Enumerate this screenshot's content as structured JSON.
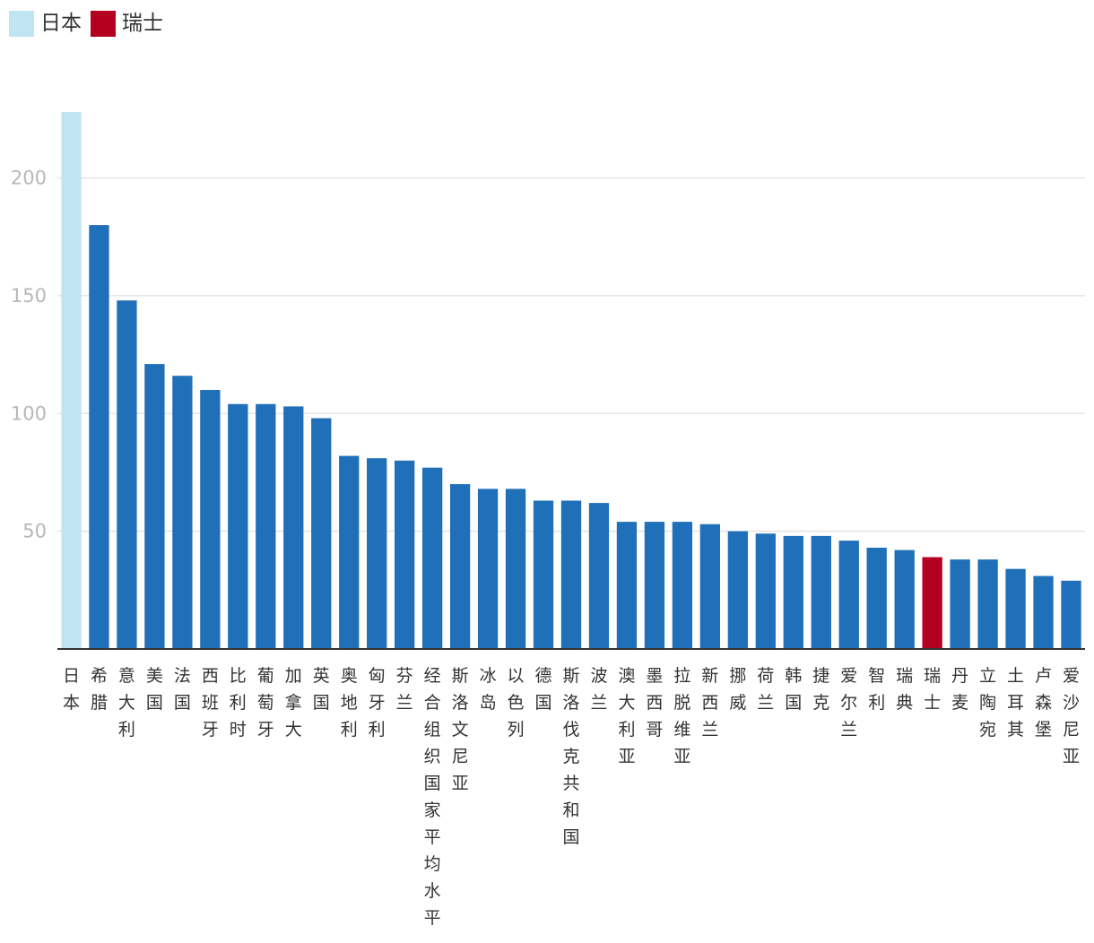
{
  "legend": [
    {
      "label": "日本",
      "color": "#bfe4f2"
    },
    {
      "label": "瑞士",
      "color": "#b30021"
    }
  ],
  "colors": {
    "default_bar": "#1f6fb9",
    "axis": "#333333",
    "grid": "#e4e4e4"
  },
  "chart_data": {
    "type": "bar",
    "title": "",
    "xlabel": "",
    "ylabel": "",
    "ylim": [
      0,
      228
    ],
    "yticks": [
      50,
      100,
      150,
      200
    ],
    "grid": true,
    "legend_position": "top-left",
    "categories": [
      "日本",
      "希腊",
      "意大利",
      "美国",
      "法国",
      "西班牙",
      "比利时",
      "葡萄牙",
      "加拿大",
      "英国",
      "奥地利",
      "匈牙利",
      "芬兰",
      "经合组织国家平均水平",
      "斯洛文尼亚",
      "冰岛",
      "以色列",
      "德国",
      "斯洛伐克共和国",
      "波兰",
      "澳大利亚",
      "墨西哥",
      "拉脱维亚",
      "新西兰",
      "挪威",
      "荷兰",
      "韩国",
      "捷克",
      "爱尔兰",
      "智利",
      "瑞典",
      "瑞士",
      "丹麦",
      "立陶宛",
      "土耳其",
      "卢森堡",
      "爱沙尼亚"
    ],
    "values": [
      228,
      180,
      148,
      121,
      116,
      110,
      104,
      104,
      103,
      98,
      82,
      81,
      80,
      77,
      70,
      68,
      68,
      63,
      63,
      62,
      54,
      54,
      54,
      53,
      50,
      49,
      48,
      48,
      46,
      43,
      42,
      39,
      38,
      38,
      34,
      31,
      29
    ],
    "highlight": {
      "日本": "#bfe4f2",
      "瑞士": "#b30021"
    }
  }
}
